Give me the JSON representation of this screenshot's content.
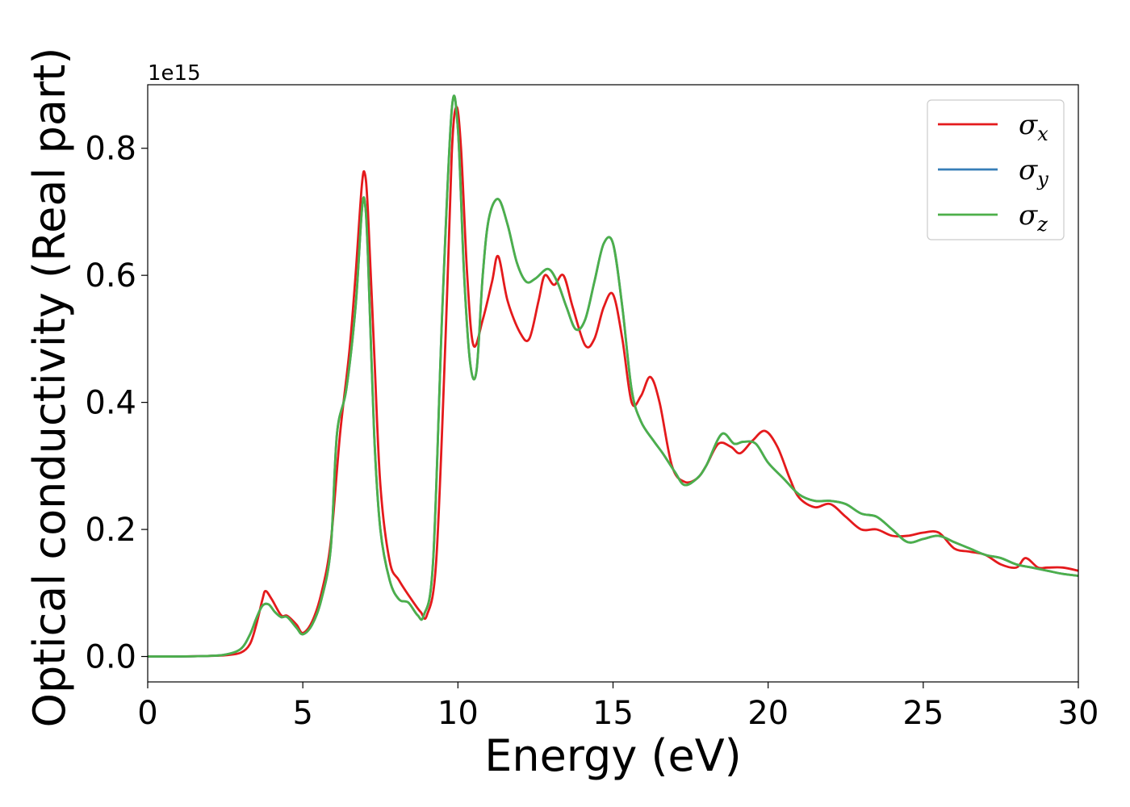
{
  "chart_data": {
    "type": "line",
    "title": "",
    "xlabel": "Energy (eV)",
    "ylabel": "Optical conductivity (Real part)",
    "y_offset_text": "1e15",
    "xlim": [
      0,
      30
    ],
    "ylim": [
      -0.04,
      0.9
    ],
    "xticks": [
      0,
      5,
      10,
      15,
      20,
      25,
      30
    ],
    "xtick_labels": [
      "0",
      "5",
      "10",
      "15",
      "20",
      "25",
      "30"
    ],
    "yticks": [
      0.0,
      0.2,
      0.4,
      0.6,
      0.8
    ],
    "ytick_labels": [
      "0.0",
      "0.2",
      "0.4",
      "0.6",
      "0.8"
    ],
    "grid": false,
    "legend_placement": "top-right",
    "series": [
      {
        "name": "σx",
        "legend_base": "σ",
        "legend_sub": "x",
        "color": "#e41a1c",
        "x": [
          0,
          1,
          2,
          2.5,
          3,
          3.3,
          3.5,
          3.7,
          3.8,
          4,
          4.3,
          4.5,
          4.8,
          5,
          5.3,
          5.6,
          5.9,
          6.2,
          6.5,
          6.7,
          6.9,
          7,
          7.1,
          7.3,
          7.5,
          7.8,
          8.1,
          8.5,
          8.8,
          9.0,
          9.3,
          9.6,
          9.8,
          9.95,
          10.1,
          10.3,
          10.5,
          10.8,
          11.1,
          11.3,
          11.6,
          12.0,
          12.3,
          12.6,
          12.8,
          13.1,
          13.4,
          13.7,
          14.1,
          14.4,
          14.7,
          15.0,
          15.3,
          15.6,
          15.9,
          16.2,
          16.5,
          16.9,
          17.3,
          17.7,
          18.0,
          18.4,
          18.8,
          19.1,
          19.5,
          19.9,
          20.3,
          20.7,
          21.0,
          21.5,
          22.0,
          22.5,
          23.0,
          23.5,
          24.0,
          24.5,
          25.0,
          25.5,
          26.0,
          26.5,
          27.0,
          27.5,
          28.0,
          28.3,
          28.7,
          29.0,
          29.5,
          30.0
        ],
        "y": [
          0.0,
          0.0,
          0.001,
          0.002,
          0.006,
          0.02,
          0.05,
          0.09,
          0.103,
          0.09,
          0.065,
          0.064,
          0.05,
          0.037,
          0.055,
          0.1,
          0.18,
          0.35,
          0.48,
          0.6,
          0.74,
          0.76,
          0.7,
          0.48,
          0.27,
          0.15,
          0.12,
          0.09,
          0.07,
          0.065,
          0.15,
          0.5,
          0.79,
          0.865,
          0.8,
          0.6,
          0.49,
          0.53,
          0.59,
          0.63,
          0.56,
          0.51,
          0.5,
          0.56,
          0.6,
          0.585,
          0.6,
          0.55,
          0.49,
          0.5,
          0.55,
          0.57,
          0.5,
          0.4,
          0.41,
          0.44,
          0.4,
          0.3,
          0.275,
          0.28,
          0.3,
          0.335,
          0.33,
          0.32,
          0.34,
          0.355,
          0.33,
          0.28,
          0.25,
          0.235,
          0.24,
          0.22,
          0.2,
          0.2,
          0.19,
          0.19,
          0.195,
          0.195,
          0.17,
          0.165,
          0.16,
          0.145,
          0.14,
          0.155,
          0.14,
          0.14,
          0.14,
          0.135
        ]
      },
      {
        "name": "σy",
        "legend_base": "σ",
        "legend_sub": "y",
        "color": "#377eb8",
        "x": [
          0,
          1,
          2,
          2.5,
          3,
          3.3,
          3.5,
          3.7,
          3.9,
          4.1,
          4.3,
          4.5,
          4.8,
          5,
          5.3,
          5.6,
          5.9,
          6.1,
          6.4,
          6.7,
          6.9,
          7.0,
          7.1,
          7.3,
          7.5,
          7.8,
          8.1,
          8.4,
          8.7,
          8.9,
          9.2,
          9.5,
          9.8,
          10.0,
          10.2,
          10.4,
          10.6,
          10.8,
          11.0,
          11.3,
          11.6,
          11.9,
          12.2,
          12.5,
          12.9,
          13.2,
          13.5,
          13.8,
          14.1,
          14.4,
          14.7,
          15.0,
          15.3,
          15.6,
          15.9,
          16.3,
          16.6,
          17.0,
          17.3,
          17.7,
          18.0,
          18.5,
          18.9,
          19.2,
          19.6,
          20.0,
          20.5,
          21.0,
          21.5,
          22.0,
          22.5,
          23.0,
          23.5,
          24.0,
          24.5,
          25.0,
          25.5,
          26.0,
          26.5,
          27.0,
          27.5,
          28.0,
          28.5,
          29.0,
          29.5,
          30.0
        ],
        "y": [
          0.0,
          0.0,
          0.001,
          0.003,
          0.012,
          0.035,
          0.06,
          0.08,
          0.082,
          0.07,
          0.062,
          0.062,
          0.045,
          0.035,
          0.05,
          0.09,
          0.17,
          0.35,
          0.42,
          0.55,
          0.7,
          0.715,
          0.63,
          0.35,
          0.2,
          0.12,
          0.09,
          0.085,
          0.065,
          0.065,
          0.15,
          0.55,
          0.86,
          0.83,
          0.6,
          0.46,
          0.45,
          0.6,
          0.69,
          0.72,
          0.68,
          0.62,
          0.59,
          0.595,
          0.61,
          0.59,
          0.55,
          0.515,
          0.53,
          0.59,
          0.65,
          0.65,
          0.55,
          0.42,
          0.37,
          0.34,
          0.32,
          0.29,
          0.27,
          0.28,
          0.3,
          0.35,
          0.335,
          0.338,
          0.335,
          0.305,
          0.28,
          0.255,
          0.245,
          0.245,
          0.24,
          0.225,
          0.22,
          0.2,
          0.18,
          0.185,
          0.19,
          0.18,
          0.17,
          0.16,
          0.155,
          0.145,
          0.14,
          0.135,
          0.13,
          0.127
        ]
      },
      {
        "name": "σz",
        "legend_base": "σ",
        "legend_sub": "z",
        "color": "#4daf4a",
        "x": [
          0,
          1,
          2,
          2.5,
          3,
          3.3,
          3.5,
          3.7,
          3.9,
          4.1,
          4.3,
          4.5,
          4.8,
          5,
          5.3,
          5.6,
          5.9,
          6.1,
          6.4,
          6.7,
          6.9,
          7.0,
          7.1,
          7.3,
          7.5,
          7.8,
          8.1,
          8.4,
          8.7,
          8.9,
          9.2,
          9.5,
          9.8,
          10.0,
          10.2,
          10.4,
          10.6,
          10.8,
          11.0,
          11.3,
          11.6,
          11.9,
          12.2,
          12.5,
          12.9,
          13.2,
          13.5,
          13.8,
          14.1,
          14.4,
          14.7,
          15.0,
          15.3,
          15.6,
          15.9,
          16.3,
          16.6,
          17.0,
          17.3,
          17.7,
          18.0,
          18.5,
          18.9,
          19.2,
          19.6,
          20.0,
          20.5,
          21.0,
          21.5,
          22.0,
          22.5,
          23.0,
          23.5,
          24.0,
          24.5,
          25.0,
          25.5,
          26.0,
          26.5,
          27.0,
          27.5,
          28.0,
          28.5,
          29.0,
          29.5,
          30.0
        ],
        "y": [
          0.0,
          0.0,
          0.001,
          0.003,
          0.012,
          0.035,
          0.06,
          0.08,
          0.082,
          0.07,
          0.062,
          0.062,
          0.045,
          0.035,
          0.05,
          0.09,
          0.17,
          0.35,
          0.42,
          0.55,
          0.7,
          0.715,
          0.63,
          0.35,
          0.2,
          0.12,
          0.09,
          0.085,
          0.065,
          0.065,
          0.15,
          0.55,
          0.86,
          0.83,
          0.6,
          0.46,
          0.45,
          0.6,
          0.69,
          0.72,
          0.68,
          0.62,
          0.59,
          0.595,
          0.61,
          0.59,
          0.55,
          0.515,
          0.53,
          0.59,
          0.65,
          0.65,
          0.55,
          0.42,
          0.37,
          0.34,
          0.32,
          0.29,
          0.27,
          0.28,
          0.3,
          0.35,
          0.335,
          0.338,
          0.335,
          0.305,
          0.28,
          0.255,
          0.245,
          0.245,
          0.24,
          0.225,
          0.22,
          0.2,
          0.18,
          0.185,
          0.19,
          0.18,
          0.17,
          0.16,
          0.155,
          0.145,
          0.14,
          0.135,
          0.13,
          0.127
        ]
      }
    ]
  }
}
